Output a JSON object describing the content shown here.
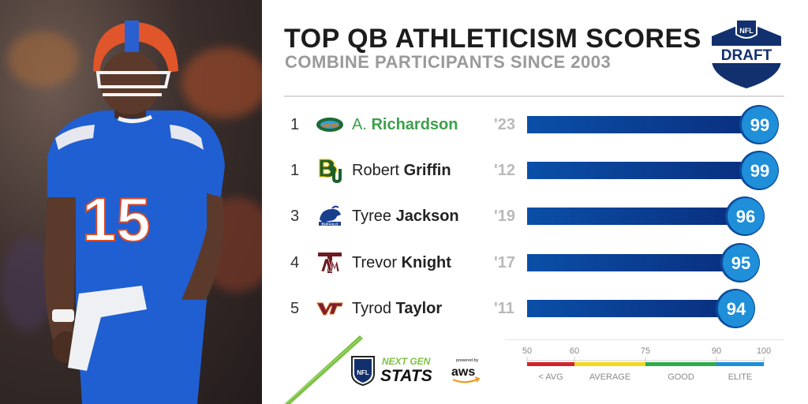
{
  "header": {
    "title": "TOP QB ATHLETICISM SCORES",
    "subtitle": "COMBINE PARTICIPANTS SINCE 2003"
  },
  "draft_logo": {
    "shield_text": "NFL",
    "banner_text": "DRAFT"
  },
  "colors": {
    "bar_start": "#0a4fa8",
    "bar_end": "#0a2e7d",
    "score_circle": "#1e8fd8",
    "highlight_name": "#3aa04b",
    "scale_red": "#d1232a",
    "scale_yellow": "#f4d81d",
    "scale_green": "#2eab4b",
    "scale_blue": "#1e8fd8"
  },
  "chart_data": {
    "type": "bar",
    "orientation": "horizontal",
    "xlim": [
      50,
      100
    ],
    "rows": [
      {
        "rank": "1",
        "first": "A.",
        "last": "Richardson",
        "year": "'23",
        "value": 99,
        "team_icon": "florida-gators-icon",
        "highlight": true
      },
      {
        "rank": "1",
        "first": "Robert",
        "last": "Griffin",
        "year": "'12",
        "value": 99,
        "team_icon": "baylor-bu-icon",
        "highlight": false
      },
      {
        "rank": "3",
        "first": "Tyree",
        "last": "Jackson",
        "year": "'19",
        "value": 96,
        "team_icon": "buffalo-bull-icon",
        "highlight": false
      },
      {
        "rank": "4",
        "first": "Trevor",
        "last": "Knight",
        "year": "'17",
        "value": 95,
        "team_icon": "texas-am-icon",
        "highlight": false
      },
      {
        "rank": "5",
        "first": "Tyrod",
        "last": "Taylor",
        "year": "'11",
        "value": 94,
        "team_icon": "virginia-tech-icon",
        "highlight": false
      }
    ],
    "scale": {
      "ticks": [
        "50",
        "60",
        "75",
        "90",
        "100"
      ],
      "tick_values": [
        50,
        60,
        75,
        90,
        100
      ],
      "bands": [
        {
          "label": "< AVG",
          "from": 50,
          "to": 60,
          "color": "#d1232a"
        },
        {
          "label": "AVERAGE",
          "from": 60,
          "to": 75,
          "color": "#f4d81d"
        },
        {
          "label": "GOOD",
          "from": 75,
          "to": 90,
          "color": "#2eab4b"
        },
        {
          "label": "ELITE",
          "from": 90,
          "to": 100,
          "color": "#1e8fd8"
        }
      ]
    }
  },
  "footer": {
    "ngs_line1": "NEXT GEN",
    "ngs_line2": "STATS",
    "powered_by": "powered by",
    "aws": "aws"
  }
}
